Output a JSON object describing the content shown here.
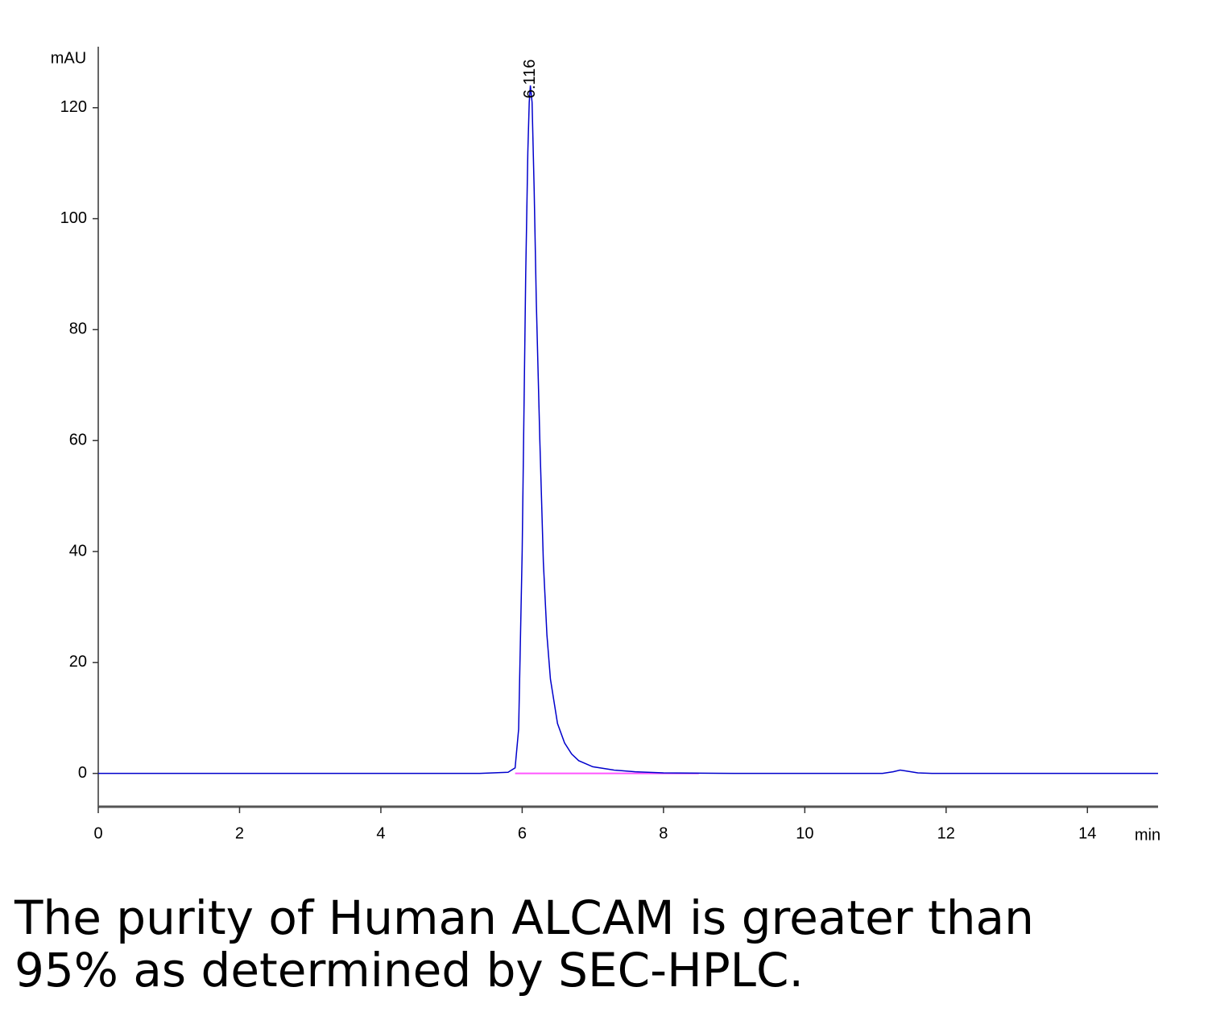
{
  "chart_data": {
    "type": "line",
    "y_label": "mAU",
    "x_label": "min",
    "xlim": [
      0,
      15
    ],
    "ylim": [
      -6,
      131
    ],
    "xticks": [
      0,
      2,
      4,
      6,
      8,
      10,
      12,
      14
    ],
    "yticks": [
      0,
      20,
      40,
      60,
      80,
      100,
      120
    ],
    "series": [
      {
        "color": "#0000cc",
        "x": [
          0,
          5.4,
          5.8,
          5.9,
          5.95,
          6.0,
          6.05,
          6.08,
          6.1,
          6.116,
          6.14,
          6.17,
          6.2,
          6.25,
          6.3,
          6.35,
          6.4,
          6.5,
          6.6,
          6.7,
          6.8,
          7.0,
          7.3,
          7.6,
          8.0,
          9.0,
          11.1,
          11.25,
          11.35,
          11.45,
          11.6,
          11.8,
          15
        ],
        "y": [
          0,
          0,
          0.2,
          1,
          8,
          40,
          90,
          112,
          121,
          124,
          121,
          105,
          85,
          60,
          38,
          25,
          17,
          9,
          5.5,
          3.5,
          2.3,
          1.2,
          0.6,
          0.3,
          0.1,
          0,
          0,
          0.3,
          0.6,
          0.4,
          0.1,
          0,
          0
        ]
      }
    ],
    "baseline": {
      "color": "#ff55ff",
      "x": [
        5.9,
        8.5
      ],
      "y": [
        0,
        0
      ]
    },
    "annotations": [
      {
        "x": 6.116,
        "y": 124,
        "label": "6.116"
      }
    ],
    "caption": [
      "The purity of Human ALCAM is greater than",
      "95% as determined by SEC-HPLC."
    ]
  }
}
